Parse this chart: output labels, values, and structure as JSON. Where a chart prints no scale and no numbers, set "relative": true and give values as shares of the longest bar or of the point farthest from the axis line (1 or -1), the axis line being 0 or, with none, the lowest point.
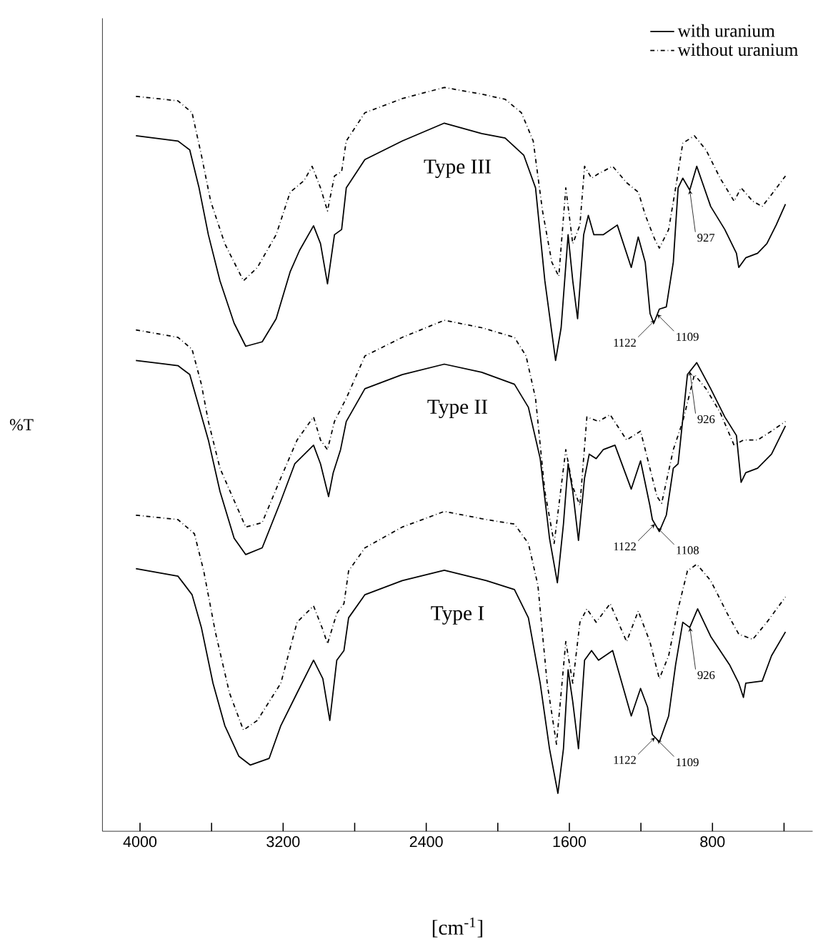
{
  "chart_data": {
    "type": "line",
    "relative": true,
    "ylabel": "%T",
    "xlabel": "[cm$^{-1}$]",
    "xlim": [
      4210,
      240
    ],
    "xticks": [
      4000,
      {
        "value": 3600,
        "label": null
      },
      3200,
      {
        "value": 2800,
        "label": null
      },
      2400,
      {
        "value": 2000,
        "label": null
      },
      1600,
      {
        "value": 1200,
        "label": null
      },
      800,
      {
        "value": 400,
        "label": null
      }
    ],
    "legend": "top right",
    "series": [
      {
        "name": "with uranium",
        "color": "#000000",
        "line_style": "solid",
        "x": [
          4023,
          3788,
          3722,
          3670,
          3618,
          3553,
          3474,
          3409,
          3317,
          3239,
          3161,
          3108,
          3030,
          2991,
          2952,
          2913,
          2873,
          2847,
          2743,
          2534,
          2299,
          2090,
          1959,
          1855,
          1789,
          1737,
          1677,
          1646,
          1607,
          1581,
          1554,
          1520,
          1494,
          1463,
          1411,
          1332,
          1254,
          1215,
          1176,
          1149,
          1128,
          1097,
          1058,
          1019,
          992,
          966,
          927,
          888,
          810,
          731,
          666,
          653,
          614,
          548,
          496,
          444,
          392
        ],
        "values": [
          0.935,
          0.928,
          0.916,
          0.865,
          0.802,
          0.74,
          0.683,
          0.652,
          0.658,
          0.689,
          0.752,
          0.781,
          0.814,
          0.79,
          0.736,
          0.802,
          0.809,
          0.865,
          0.903,
          0.928,
          0.952,
          0.938,
          0.932,
          0.909,
          0.865,
          0.74,
          0.633,
          0.677,
          0.802,
          0.74,
          0.689,
          0.802,
          0.828,
          0.802,
          0.802,
          0.815,
          0.758,
          0.799,
          0.765,
          0.696,
          0.683,
          0.702,
          0.705,
          0.765,
          0.865,
          0.878,
          0.862,
          0.894,
          0.84,
          0.809,
          0.777,
          0.758,
          0.771,
          0.777,
          0.79,
          0.815,
          0.843
        ]
      },
      {
        "name": "without uranium",
        "color": "#000000",
        "line_style": "dashdot",
        "x": [
          4023,
          3788,
          3709,
          3657,
          3605,
          3526,
          3422,
          3344,
          3239,
          3161,
          3082,
          3038,
          2991,
          2952,
          2913,
          2873,
          2847,
          2743,
          2534,
          2299,
          2090,
          1959,
          1868,
          1802,
          1750,
          1698,
          1659,
          1620,
          1581,
          1541,
          1515,
          1476,
          1437,
          1358,
          1280,
          1214,
          1175,
          1123,
          1097,
          1045,
          1006,
          966,
          901,
          836,
          757,
          679,
          640,
          575,
          522,
          470,
          392
        ],
        "values": [
          0.988,
          0.982,
          0.966,
          0.909,
          0.847,
          0.79,
          0.74,
          0.758,
          0.802,
          0.859,
          0.875,
          0.894,
          0.865,
          0.834,
          0.881,
          0.887,
          0.928,
          0.966,
          0.985,
          1.0,
          0.991,
          0.984,
          0.966,
          0.928,
          0.834,
          0.765,
          0.746,
          0.865,
          0.79,
          0.815,
          0.894,
          0.878,
          0.884,
          0.894,
          0.872,
          0.859,
          0.828,
          0.796,
          0.784,
          0.809,
          0.865,
          0.925,
          0.935,
          0.916,
          0.878,
          0.847,
          0.865,
          0.847,
          0.84,
          0.856,
          0.881
        ]
      },
      {
        "color": "#000000",
        "line_style": "solid",
        "x": [
          4023,
          3788,
          3722,
          3670,
          3618,
          3553,
          3474,
          3409,
          3317,
          3213,
          3135,
          3030,
          2991,
          2946,
          2920,
          2879,
          2847,
          2743,
          2534,
          2299,
          2090,
          1907,
          1829,
          1763,
          1711,
          1667,
          1633,
          1607,
          1581,
          1549,
          1515,
          1489,
          1450,
          1411,
          1345,
          1254,
          1202,
          1150,
          1136,
          1097,
          1058,
          1019,
          992,
          940,
          888,
          810,
          731,
          666,
          640,
          614,
          548,
          470,
          392
        ],
        "values": [
          0.633,
          0.626,
          0.614,
          0.57,
          0.526,
          0.457,
          0.394,
          0.372,
          0.381,
          0.444,
          0.494,
          0.519,
          0.494,
          0.45,
          0.482,
          0.513,
          0.551,
          0.595,
          0.614,
          0.628,
          0.617,
          0.601,
          0.57,
          0.501,
          0.394,
          0.334,
          0.413,
          0.494,
          0.457,
          0.391,
          0.475,
          0.507,
          0.501,
          0.513,
          0.519,
          0.46,
          0.498,
          0.438,
          0.419,
          0.403,
          0.425,
          0.488,
          0.494,
          0.614,
          0.63,
          0.595,
          0.557,
          0.532,
          0.469,
          0.482,
          0.488,
          0.507,
          0.545
        ]
      },
      {
        "color": "#000000",
        "line_style": "dashdot",
        "x": [
          4023,
          3788,
          3709,
          3657,
          3618,
          3553,
          3409,
          3317,
          3213,
          3122,
          3030,
          2991,
          2952,
          2913,
          2847,
          2743,
          2534,
          2299,
          2090,
          1907,
          1842,
          1789,
          1737,
          1685,
          1620,
          1581,
          1541,
          1502,
          1437,
          1372,
          1280,
          1202,
          1110,
          1084,
          1019,
          966,
          901,
          836,
          757,
          679,
          627,
          548,
          470,
          392
        ],
        "values": [
          0.674,
          0.664,
          0.648,
          0.601,
          0.551,
          0.488,
          0.409,
          0.415,
          0.475,
          0.526,
          0.557,
          0.526,
          0.513,
          0.551,
          0.582,
          0.639,
          0.664,
          0.687,
          0.677,
          0.664,
          0.639,
          0.582,
          0.457,
          0.387,
          0.513,
          0.463,
          0.438,
          0.557,
          0.551,
          0.56,
          0.526,
          0.538,
          0.45,
          0.441,
          0.513,
          0.551,
          0.614,
          0.595,
          0.563,
          0.519,
          0.526,
          0.526,
          0.538,
          0.551
        ]
      },
      {
        "color": "#000000",
        "line_style": "solid",
        "x": [
          4023,
          3788,
          3709,
          3657,
          3592,
          3526,
          3448,
          3383,
          3278,
          3213,
          3122,
          3030,
          2978,
          2939,
          2900,
          2860,
          2834,
          2743,
          2534,
          2299,
          2064,
          1907,
          1829,
          1763,
          1711,
          1664,
          1633,
          1607,
          1581,
          1549,
          1515,
          1476,
          1437,
          1358,
          1254,
          1202,
          1163,
          1136,
          1097,
          1045,
          1006,
          966,
          927,
          883,
          810,
          705,
          653,
          627,
          614,
          522,
          470,
          392
        ],
        "values": [
          0.353,
          0.343,
          0.318,
          0.274,
          0.199,
          0.142,
          0.101,
          0.089,
          0.098,
          0.142,
          0.186,
          0.23,
          0.205,
          0.149,
          0.23,
          0.243,
          0.287,
          0.318,
          0.337,
          0.351,
          0.337,
          0.325,
          0.287,
          0.199,
          0.111,
          0.051,
          0.111,
          0.217,
          0.174,
          0.111,
          0.23,
          0.243,
          0.23,
          0.243,
          0.155,
          0.192,
          0.167,
          0.13,
          0.12,
          0.155,
          0.224,
          0.281,
          0.274,
          0.299,
          0.262,
          0.224,
          0.199,
          0.18,
          0.199,
          0.202,
          0.236,
          0.268
        ]
      },
      {
        "color": "#000000",
        "line_style": "dashdot",
        "x": [
          4023,
          3788,
          3696,
          3644,
          3579,
          3500,
          3422,
          3344,
          3213,
          3122,
          3030,
          2978,
          2952,
          2900,
          2860,
          2834,
          2743,
          2534,
          2299,
          2064,
          1907,
          1829,
          1776,
          1724,
          1672,
          1620,
          1581,
          1541,
          1502,
          1450,
          1372,
          1280,
          1215,
          1150,
          1097,
          1045,
          992,
          940,
          888,
          810,
          718,
          653,
          575,
          496,
          392
        ],
        "values": [
          0.425,
          0.419,
          0.4,
          0.35,
          0.268,
          0.186,
          0.136,
          0.149,
          0.199,
          0.281,
          0.303,
          0.271,
          0.252,
          0.293,
          0.306,
          0.35,
          0.381,
          0.409,
          0.43,
          0.419,
          0.413,
          0.387,
          0.331,
          0.199,
          0.117,
          0.255,
          0.199,
          0.281,
          0.299,
          0.281,
          0.306,
          0.255,
          0.296,
          0.255,
          0.205,
          0.236,
          0.299,
          0.35,
          0.359,
          0.337,
          0.293,
          0.265,
          0.258,
          0.281,
          0.315
        ]
      }
    ],
    "annotations": [
      "Type III",
      {
        "text": "1122",
        "x": 1122,
        "y": 0.687
      },
      {
        "text": "1109",
        "x": 1109,
        "y": 0.695
      },
      {
        "text": "927",
        "x": 927,
        "y": 0.862
      },
      "Type II",
      {
        "text": "1122",
        "x": 1122,
        "y": 0.413
      },
      {
        "text": "1108",
        "x": 1108,
        "y": 0.408
      },
      {
        "text": "926",
        "x": 926,
        "y": 0.618
      },
      "Type I",
      {
        "text": "1122",
        "x": 1122,
        "y": 0.126
      },
      {
        "text": "1109",
        "x": 1109,
        "y": 0.123
      },
      {
        "text": "926",
        "x": 926,
        "y": 0.274
      }
    ]
  }
}
